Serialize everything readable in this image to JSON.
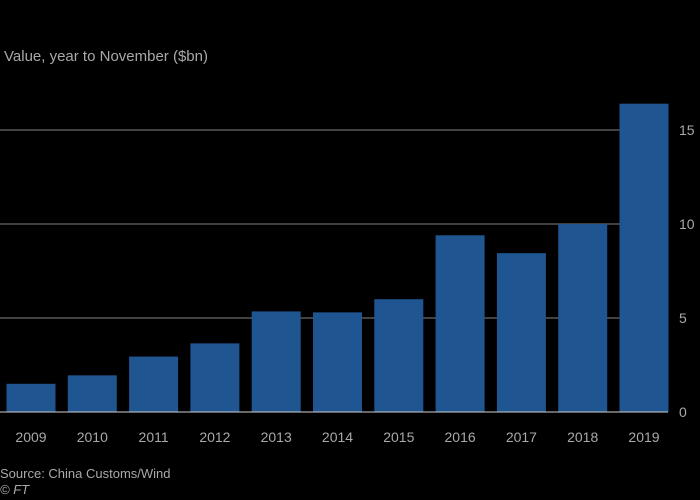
{
  "chart_data": {
    "type": "bar",
    "subtitle": "Value, year to November ($bn)",
    "categories": [
      "2009",
      "2010",
      "2011",
      "2012",
      "2013",
      "2014",
      "2015",
      "2016",
      "2017",
      "2018",
      "2019"
    ],
    "values": [
      1.5,
      1.95,
      2.95,
      3.65,
      5.35,
      5.3,
      6.0,
      9.4,
      8.45,
      10.0,
      16.4
    ],
    "ylim": [
      0,
      16.5
    ],
    "yticks": [
      "0",
      "5",
      "10",
      "15"
    ],
    "bar_color": "#1f5591",
    "gridline_color": "#b0b0b0",
    "grid": true,
    "y_axis_side": "right",
    "source": "Source: China Customs/Wind",
    "credit": "© FT"
  }
}
